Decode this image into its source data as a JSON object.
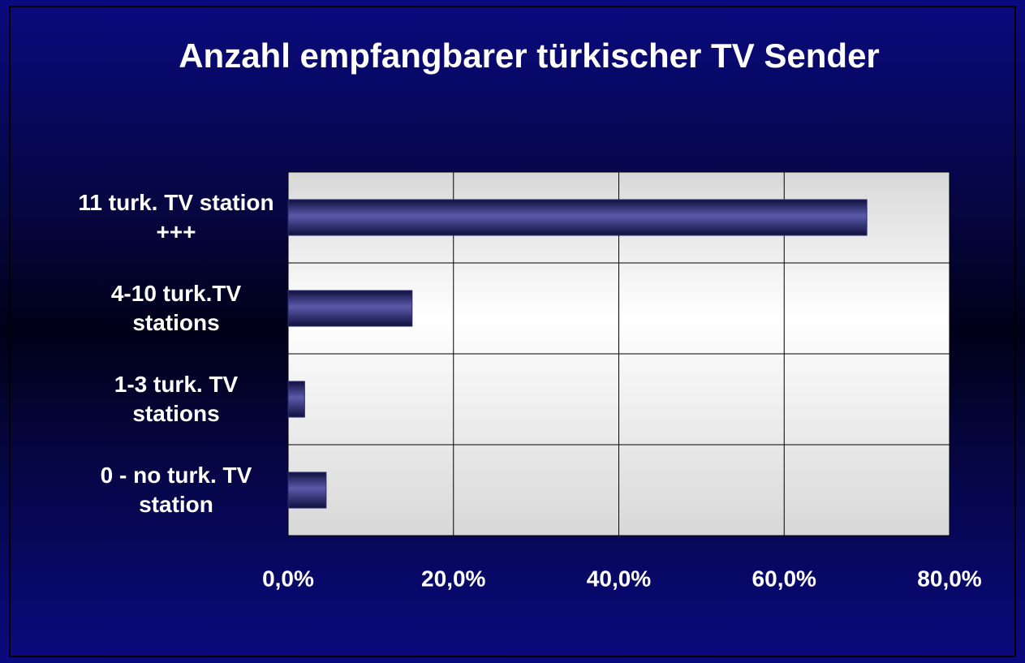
{
  "chart_data": {
    "type": "bar",
    "orientation": "horizontal",
    "title": "Anzahl empfangbarer türkischer TV Sender",
    "categories": [
      "11 turk. TV station +++",
      "4-10 turk.TV stations",
      "1-3 turk. TV stations",
      "0 - no turk. TV station"
    ],
    "values": [
      70,
      15,
      2,
      4.6
    ],
    "color": "#2a2a7a",
    "xlim": [
      0,
      80
    ],
    "xticks": [
      {
        "value": 0,
        "label": "0,0%"
      },
      {
        "value": 20,
        "label": "20,0%"
      },
      {
        "value": 40,
        "label": "40,0%"
      },
      {
        "value": 60,
        "label": "60,0%"
      },
      {
        "value": 80,
        "label": "80,0%"
      }
    ],
    "grid": true
  }
}
